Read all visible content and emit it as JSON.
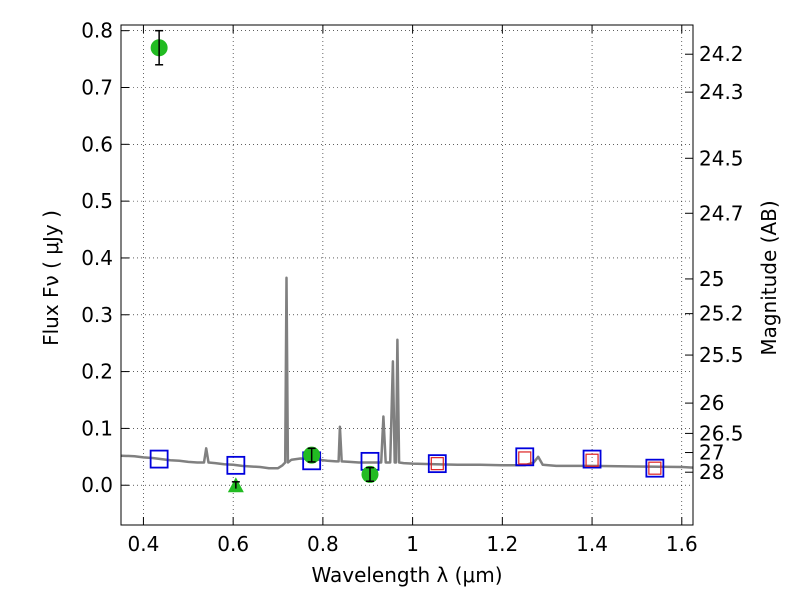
{
  "chart_data": {
    "type": "scatter",
    "xlabel": "Wavelength  λ (μm)",
    "ylabel": "Flux  Fν  ( μJy )",
    "y2label": "Magnitude (AB)",
    "xlim": [
      0.35,
      1.625
    ],
    "ylim": [
      -0.07,
      0.81
    ],
    "grid": true,
    "x_ticks": [
      0.4,
      0.6,
      0.8,
      1.0,
      1.2,
      1.4,
      1.6
    ],
    "x_tick_labels": [
      "0.4",
      "0.6",
      "0.8",
      "1",
      "1.2",
      "1.4",
      "1.6"
    ],
    "y_ticks": [
      0.0,
      0.1,
      0.2,
      0.3,
      0.4,
      0.5,
      0.6,
      0.7,
      0.8
    ],
    "y_tick_labels": [
      "0.0",
      "0.1",
      "0.2",
      "0.3",
      "0.4",
      "0.5",
      "0.6",
      "0.7",
      "0.8"
    ],
    "magnitude_ticks": [
      "24.2",
      "24.3",
      "24.5",
      "24.7",
      "25",
      "25.2",
      "25.5",
      "26",
      "26.5",
      "27",
      "28"
    ],
    "colors": {
      "spectrum": "#808080",
      "observed": "#22bb22",
      "model_blue": "#0000dd",
      "model_red": "#dd2222"
    },
    "series": [
      {
        "kind": "model-spectrum",
        "points": [
          [
            0.35,
            0.052
          ],
          [
            0.38,
            0.051
          ],
          [
            0.4,
            0.049
          ],
          [
            0.42,
            0.048
          ],
          [
            0.44,
            0.046
          ],
          [
            0.46,
            0.044
          ],
          [
            0.48,
            0.043
          ],
          [
            0.5,
            0.041
          ],
          [
            0.52,
            0.04
          ],
          [
            0.535,
            0.04
          ],
          [
            0.54,
            0.065
          ],
          [
            0.545,
            0.04
          ],
          [
            0.56,
            0.039
          ],
          [
            0.58,
            0.037
          ],
          [
            0.6,
            0.036
          ],
          [
            0.62,
            0.034
          ],
          [
            0.64,
            0.033
          ],
          [
            0.66,
            0.032
          ],
          [
            0.68,
            0.03
          ],
          [
            0.7,
            0.03
          ],
          [
            0.71,
            0.035
          ],
          [
            0.716,
            0.04
          ],
          [
            0.719,
            0.365
          ],
          [
            0.722,
            0.04
          ],
          [
            0.73,
            0.045
          ],
          [
            0.75,
            0.047
          ],
          [
            0.77,
            0.046
          ],
          [
            0.79,
            0.045
          ],
          [
            0.81,
            0.043
          ],
          [
            0.83,
            0.042
          ],
          [
            0.835,
            0.042
          ],
          [
            0.838,
            0.103
          ],
          [
            0.842,
            0.042
          ],
          [
            0.86,
            0.041
          ],
          [
            0.88,
            0.04
          ],
          [
            0.9,
            0.04
          ],
          [
            0.93,
            0.04
          ],
          [
            0.935,
            0.121
          ],
          [
            0.94,
            0.04
          ],
          [
            0.95,
            0.04
          ],
          [
            0.956,
            0.218
          ],
          [
            0.96,
            0.04
          ],
          [
            0.963,
            0.04
          ],
          [
            0.966,
            0.256
          ],
          [
            0.97,
            0.04
          ],
          [
            0.98,
            0.039
          ],
          [
            1.0,
            0.038
          ],
          [
            1.05,
            0.037
          ],
          [
            1.1,
            0.036
          ],
          [
            1.15,
            0.036
          ],
          [
            1.2,
            0.035
          ],
          [
            1.25,
            0.035
          ],
          [
            1.27,
            0.04
          ],
          [
            1.28,
            0.05
          ],
          [
            1.29,
            0.036
          ],
          [
            1.32,
            0.034
          ],
          [
            1.4,
            0.034
          ],
          [
            1.5,
            0.033
          ],
          [
            1.6,
            0.032
          ],
          [
            1.625,
            0.031
          ]
        ]
      },
      {
        "kind": "observed-detections",
        "points": [
          {
            "x": 0.435,
            "y": 0.77,
            "err": 0.03
          },
          {
            "x": 0.775,
            "y": 0.053,
            "err": 0.012
          },
          {
            "x": 0.905,
            "y": 0.019,
            "err": 0.012
          }
        ]
      },
      {
        "kind": "observed-upper-limit",
        "points": [
          {
            "x": 0.606,
            "y": 0.0,
            "err": 0.006
          }
        ]
      },
      {
        "kind": "model-photometry",
        "points": [
          {
            "x": 0.435,
            "y": 0.046
          },
          {
            "x": 0.606,
            "y": 0.035
          },
          {
            "x": 0.775,
            "y": 0.043
          },
          {
            "x": 0.905,
            "y": 0.042
          },
          {
            "x": 1.055,
            "y": 0.038
          },
          {
            "x": 1.25,
            "y": 0.05
          },
          {
            "x": 1.4,
            "y": 0.046
          },
          {
            "x": 1.54,
            "y": 0.03
          }
        ]
      },
      {
        "kind": "model-photometry-inner",
        "points": [
          {
            "x": 1.055,
            "y": 0.038
          },
          {
            "x": 1.25,
            "y": 0.048
          },
          {
            "x": 1.4,
            "y": 0.044
          },
          {
            "x": 1.54,
            "y": 0.03
          }
        ]
      }
    ]
  }
}
